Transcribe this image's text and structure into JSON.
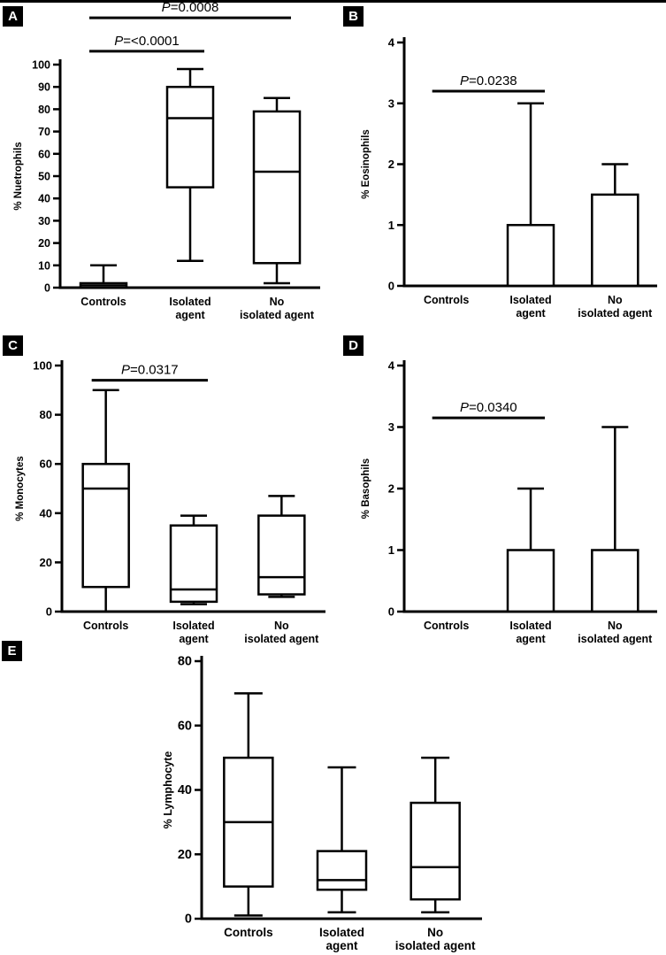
{
  "figure": {
    "background": "#ffffff",
    "ink": "#000000",
    "description": "Five box-and-whisker plots comparing white blood cell differential percentages across Controls, Isolated agent and No isolated agent groups"
  },
  "chart_data": [
    {
      "panel": "A",
      "type": "box",
      "ylabel": "% Nuetrophils",
      "ylim": [
        0,
        100
      ],
      "yticks": [
        0,
        10,
        20,
        30,
        40,
        50,
        60,
        70,
        80,
        90,
        100
      ],
      "categories": [
        "Controls",
        "Isolated\nagent",
        "No\nisolated agent"
      ],
      "boxes": [
        {
          "whislo": 0,
          "q1": 0,
          "med": 1,
          "q3": 2,
          "whishi": 10
        },
        {
          "whislo": 12,
          "q1": 45,
          "med": 76,
          "q3": 90,
          "whishi": 98
        },
        {
          "whislo": 2,
          "q1": 11,
          "med": 52,
          "q3": 79,
          "whishi": 85
        }
      ],
      "annotations": [
        {
          "text": "P=<0.0001",
          "groups": [
            0,
            1
          ],
          "y": 106
        },
        {
          "text": "P=0.0008",
          "groups": [
            0,
            2
          ],
          "y": 121
        }
      ]
    },
    {
      "panel": "B",
      "type": "box",
      "ylabel": "% Eosinophils",
      "ylim": [
        0,
        4
      ],
      "yticks": [
        0,
        1,
        2,
        3,
        4
      ],
      "categories": [
        "Controls",
        "Isolated\nagent",
        "No\nisolated agent"
      ],
      "boxes": [
        {
          "whislo": 0,
          "q1": 0,
          "med": 0,
          "q3": 0,
          "whishi": 0
        },
        {
          "whislo": 0,
          "q1": 0,
          "med": 0,
          "q3": 1,
          "whishi": 3
        },
        {
          "whislo": 0,
          "q1": 0,
          "med": 0,
          "q3": 1.5,
          "whishi": 2
        }
      ],
      "annotations": [
        {
          "text": "P=0.0238",
          "groups": [
            0,
            1
          ],
          "y": 3.2
        }
      ]
    },
    {
      "panel": "C",
      "type": "box",
      "ylabel": "% Monocytes",
      "ylim": [
        0,
        100
      ],
      "yticks": [
        0,
        20,
        40,
        60,
        80,
        100
      ],
      "categories": [
        "Controls",
        "Isolated\nagent",
        "No\nisolated agent"
      ],
      "boxes": [
        {
          "whislo": 0,
          "q1": 10,
          "med": 50,
          "q3": 60,
          "whishi": 90
        },
        {
          "whislo": 3,
          "q1": 4,
          "med": 9,
          "q3": 35,
          "whishi": 39
        },
        {
          "whislo": 6,
          "q1": 7,
          "med": 14,
          "q3": 39,
          "whishi": 47
        }
      ],
      "annotations": [
        {
          "text": "P=0.0317",
          "groups": [
            0,
            1
          ],
          "y": 94
        }
      ]
    },
    {
      "panel": "D",
      "type": "box",
      "ylabel": "% Basophils",
      "ylim": [
        0,
        4
      ],
      "yticks": [
        0,
        1,
        2,
        3,
        4
      ],
      "categories": [
        "Controls",
        "Isolated\nagent",
        "No\nisolated agent"
      ],
      "boxes": [
        {
          "whislo": 0,
          "q1": 0,
          "med": 0,
          "q3": 0,
          "whishi": 0
        },
        {
          "whislo": 0,
          "q1": 0,
          "med": 0,
          "q3": 1,
          "whishi": 2
        },
        {
          "whislo": 0,
          "q1": 0,
          "med": 0,
          "q3": 1,
          "whishi": 3
        }
      ],
      "annotations": [
        {
          "text": "P=0.0340",
          "groups": [
            0,
            1
          ],
          "y": 3.15
        }
      ]
    },
    {
      "panel": "E",
      "type": "box",
      "ylabel": "% Lymphocyte",
      "ylim": [
        0,
        80
      ],
      "yticks": [
        0,
        20,
        40,
        60,
        80
      ],
      "categories": [
        "Controls",
        "Isolated\nagent",
        "No\nisolated agent"
      ],
      "boxes": [
        {
          "whislo": 1,
          "q1": 10,
          "med": 30,
          "q3": 50,
          "whishi": 70
        },
        {
          "whislo": 2,
          "q1": 9,
          "med": 12,
          "q3": 21,
          "whishi": 47
        },
        {
          "whislo": 2,
          "q1": 6,
          "med": 16,
          "q3": 36,
          "whishi": 50
        }
      ],
      "annotations": []
    }
  ]
}
